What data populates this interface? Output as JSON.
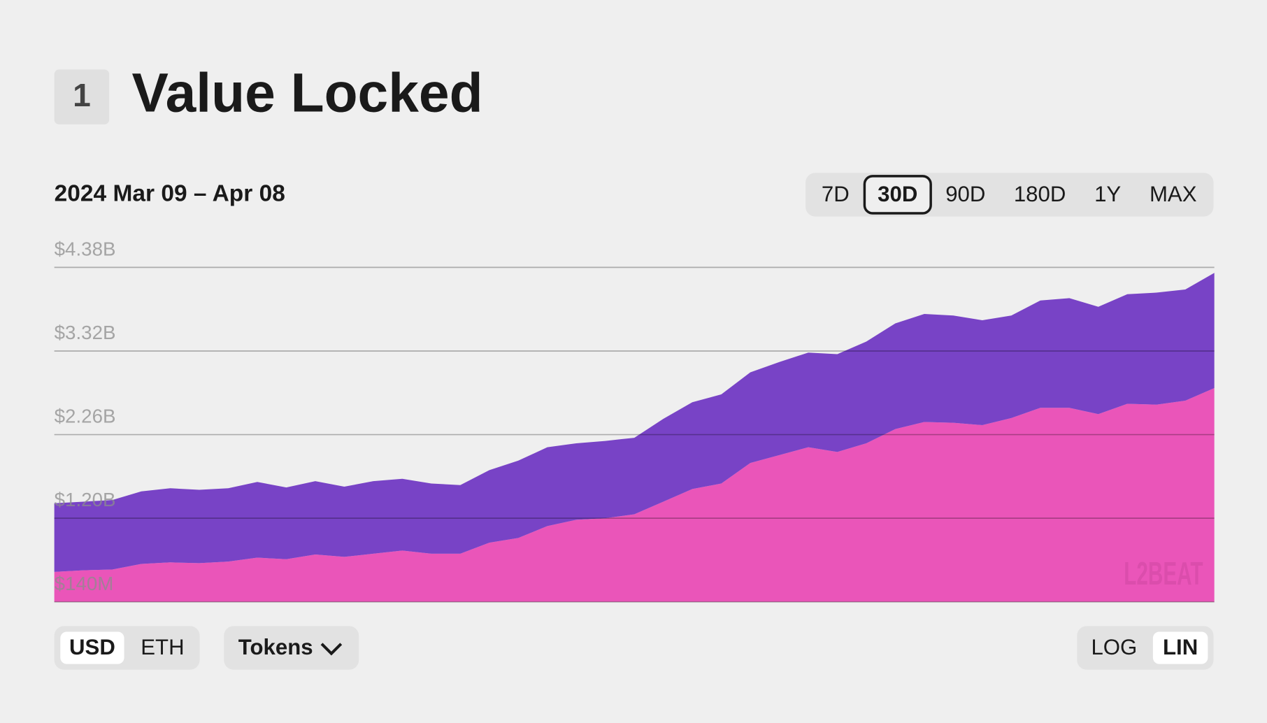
{
  "badge": "1",
  "title": "Value Locked",
  "date_range": "2024 Mar 09 – Apr 08",
  "ranges": {
    "options": [
      "7D",
      "30D",
      "90D",
      "180D",
      "1Y",
      "MAX"
    ],
    "active": 1
  },
  "currency": {
    "options": [
      "USD",
      "ETH"
    ],
    "active": 0
  },
  "tokens_menu": "Tokens",
  "scale": {
    "options": [
      "LOG",
      "LIN"
    ],
    "active": 1
  },
  "watermark": "L2BEAT",
  "chart_data": {
    "type": "area",
    "stacked": true,
    "log_scale": false,
    "grid": true,
    "ylim": [
      0.14,
      4.38
    ],
    "yticks": [
      {
        "value": 0.14,
        "label": "$140M"
      },
      {
        "value": 1.2,
        "label": "$1.20B"
      },
      {
        "value": 2.26,
        "label": "$2.26B"
      },
      {
        "value": 3.32,
        "label": "$3.32B"
      },
      {
        "value": 4.38,
        "label": "$4.38B"
      }
    ],
    "series": [
      {
        "color": "#ea55b9",
        "values": [
          0.38,
          0.4,
          0.41,
          0.48,
          0.5,
          0.49,
          0.51,
          0.56,
          0.54,
          0.6,
          0.57,
          0.61,
          0.65,
          0.61,
          0.61,
          0.75,
          0.81,
          0.96,
          1.04,
          1.06,
          1.11,
          1.27,
          1.43,
          1.5,
          1.76,
          1.86,
          1.96,
          1.9,
          2.01,
          2.19,
          2.28,
          2.27,
          2.24,
          2.33,
          2.46,
          2.46,
          2.38,
          2.51,
          2.5,
          2.55,
          2.71
        ]
      },
      {
        "color": "#7843c6",
        "values": [
          0.87,
          0.87,
          0.88,
          0.92,
          0.94,
          0.93,
          0.93,
          0.96,
          0.91,
          0.93,
          0.89,
          0.92,
          0.91,
          0.89,
          0.87,
          0.92,
          0.98,
          1.0,
          0.97,
          0.98,
          0.97,
          1.05,
          1.1,
          1.13,
          1.15,
          1.18,
          1.2,
          1.24,
          1.29,
          1.34,
          1.37,
          1.36,
          1.33,
          1.3,
          1.36,
          1.39,
          1.36,
          1.39,
          1.42,
          1.41,
          1.46
        ]
      }
    ]
  }
}
